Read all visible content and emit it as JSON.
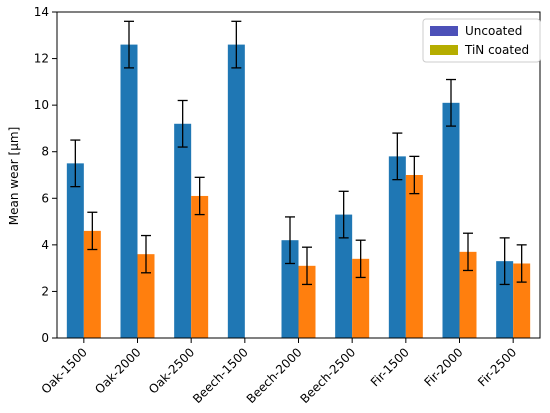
{
  "chart_data": {
    "type": "bar",
    "title": "",
    "xlabel": "",
    "ylabel": "Mean wear [µm]",
    "ylim": [
      0,
      14
    ],
    "yticks": [
      0,
      2,
      4,
      6,
      8,
      10,
      12,
      14
    ],
    "grid": false,
    "legend_position": "top-right",
    "categories": [
      "Oak-1500",
      "Oak-2000",
      "Oak-2500",
      "Beech-1500",
      "Beech-2000",
      "Beech-2500",
      "Fir-1500",
      "Fir-2000",
      "Fir-2500"
    ],
    "series": [
      {
        "name": "Uncoated",
        "legend_color": "#4c50b8",
        "bar_color": "#1f77b4",
        "values": [
          7.5,
          12.6,
          9.2,
          12.6,
          4.2,
          5.3,
          7.8,
          10.1,
          3.3
        ],
        "errors": [
          1.0,
          1.0,
          1.0,
          1.0,
          1.0,
          1.0,
          1.0,
          1.0,
          1.0
        ]
      },
      {
        "name": "TiN coated",
        "legend_color": "#b5ad00",
        "bar_color": "#ff7f0e",
        "values": [
          4.6,
          3.6,
          6.1,
          null,
          3.1,
          3.4,
          7.0,
          3.7,
          3.2
        ],
        "errors": [
          0.8,
          0.8,
          0.8,
          null,
          0.8,
          0.8,
          0.8,
          0.8,
          0.8
        ]
      }
    ]
  }
}
